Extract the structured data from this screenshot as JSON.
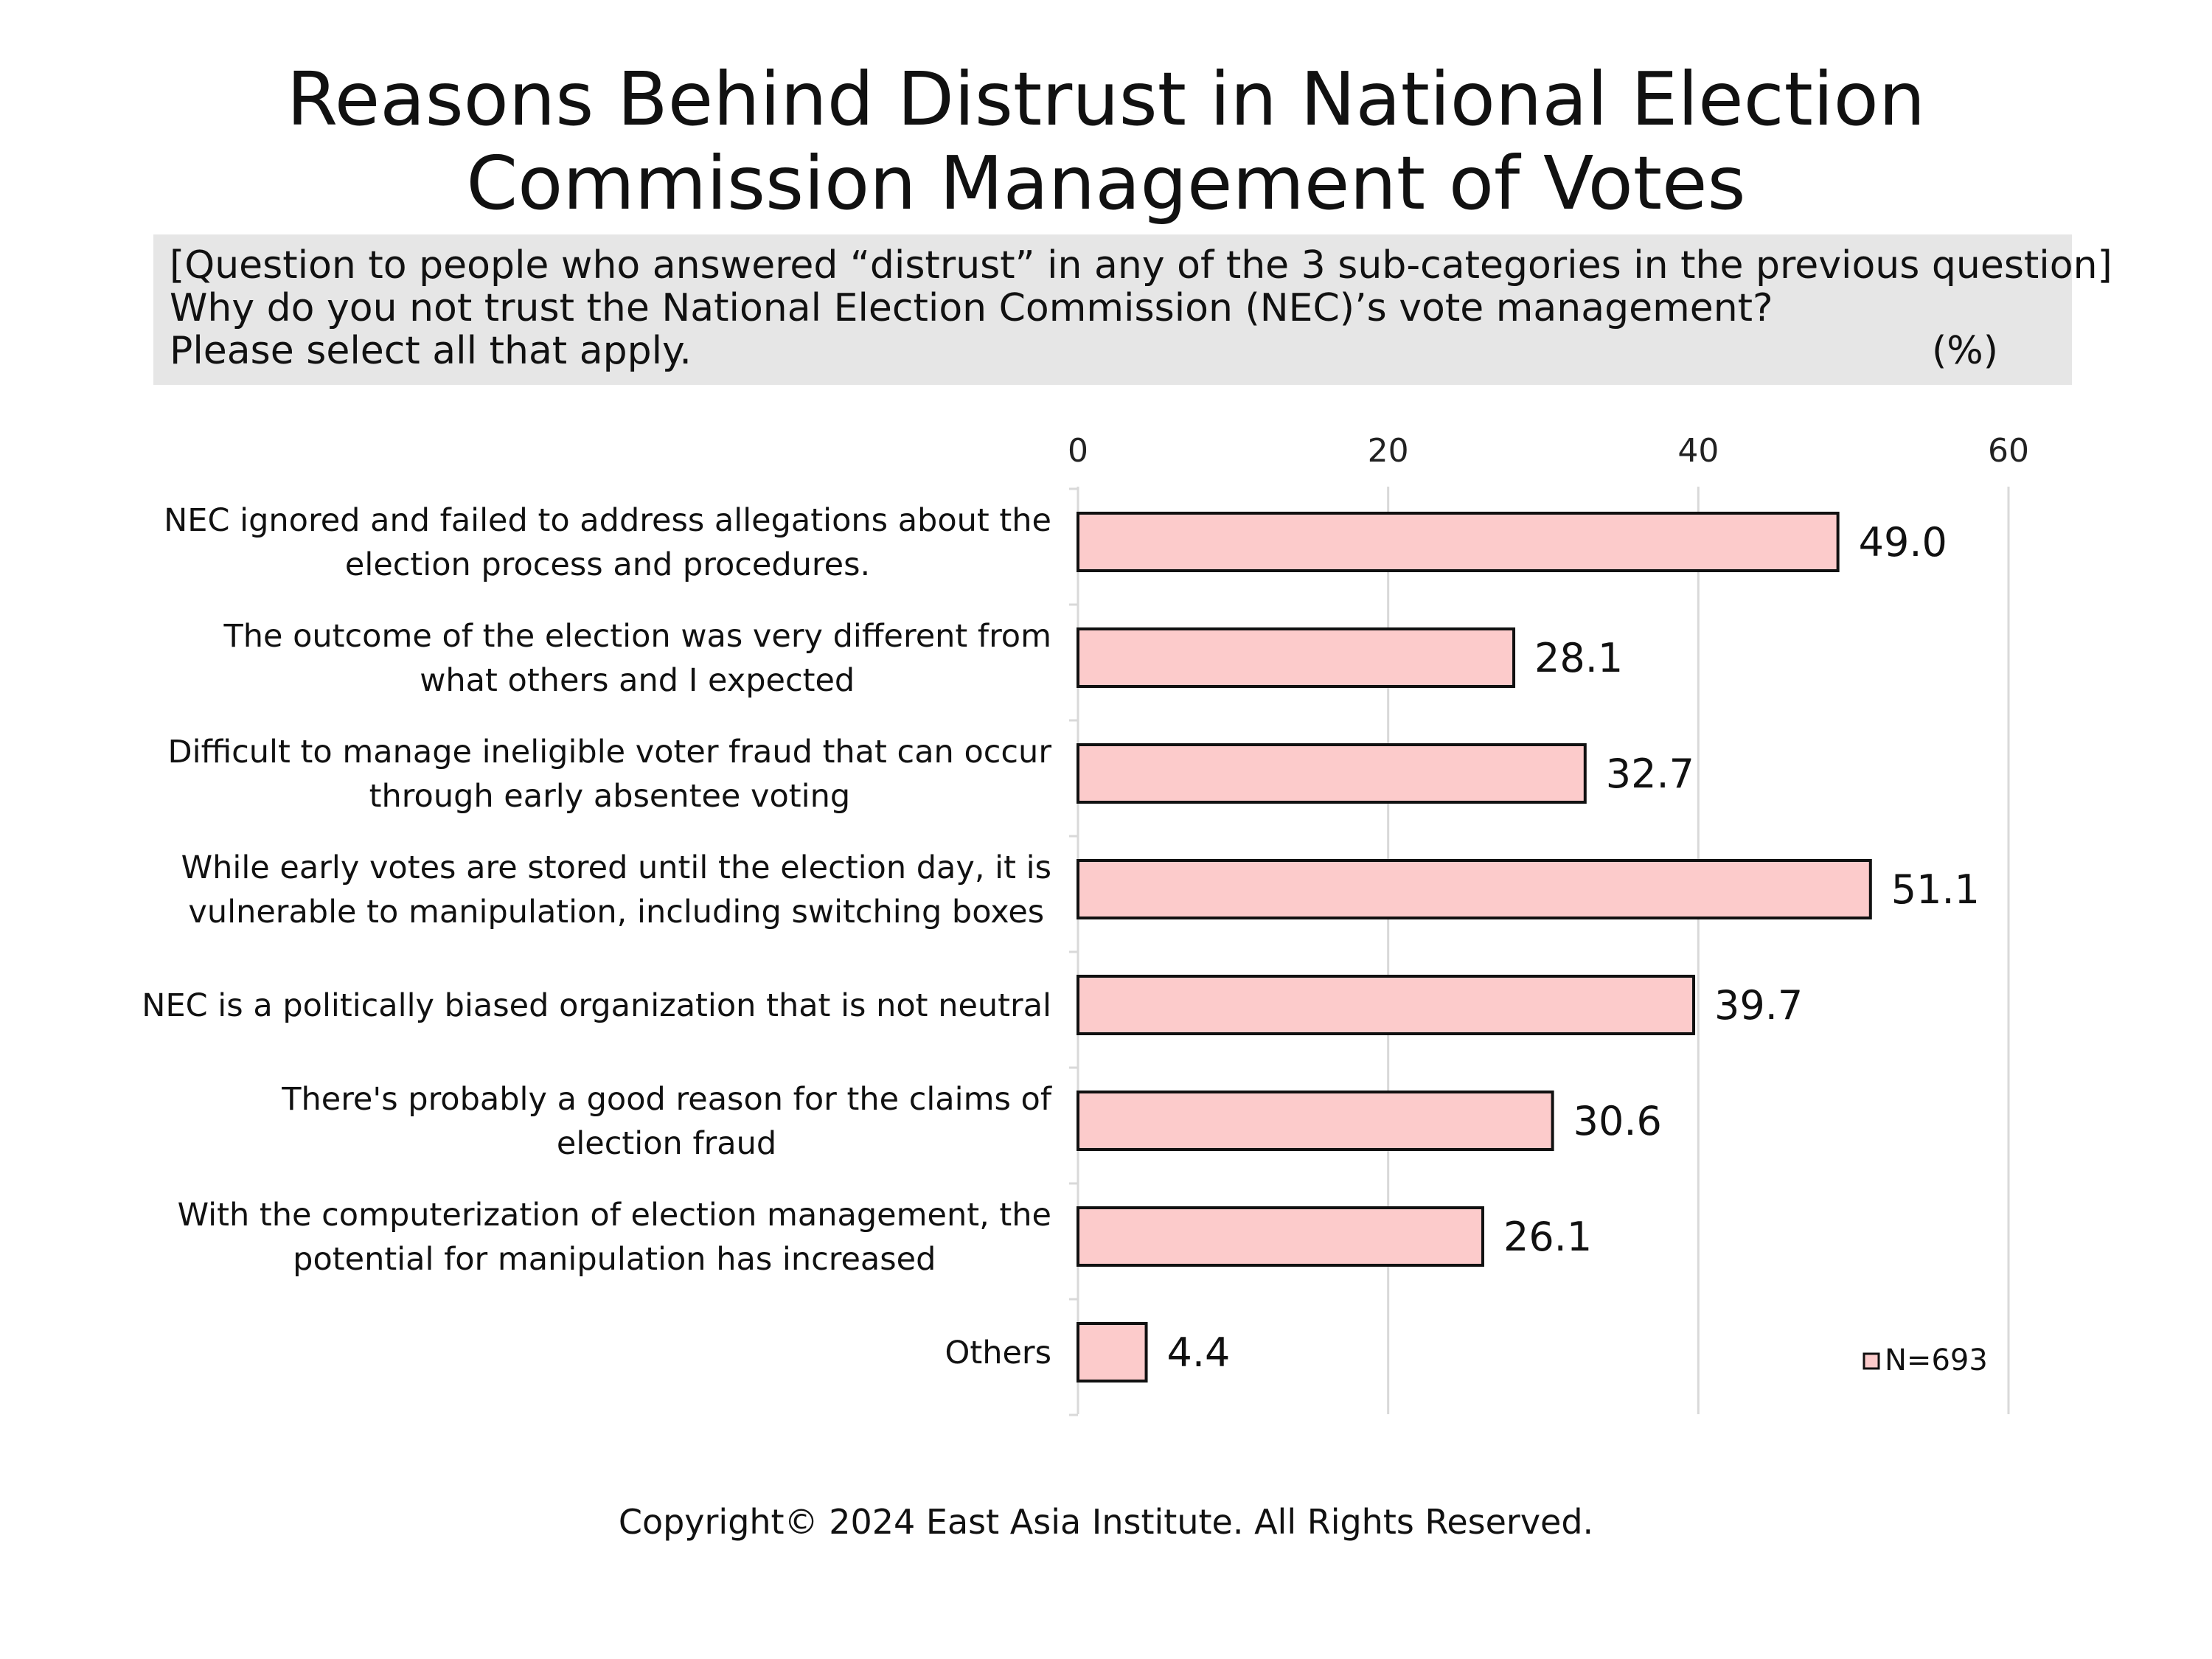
{
  "title_lines": [
    "Reasons Behind Distrust in National Election",
    "Commission Management of Votes"
  ],
  "question": {
    "line1": "[Question to people who answered “distrust” in any of the 3 sub-categories in the previous question]",
    "line2": "Why do you not trust the National Election Commission (NEC)’s vote management?",
    "line3": "Please select all that apply.",
    "unit": "(%)"
  },
  "footer": "Copyright© 2024 East Asia Institute. All Rights Reserved.",
  "colors": {
    "bar_fill": "#fccbcb",
    "bar_stroke": "#111111",
    "grid": "#d9d9d9",
    "question_bg": "#e6e6e6"
  },
  "chart_data": {
    "type": "bar",
    "orientation": "horizontal",
    "xlim": [
      0,
      60
    ],
    "x_ticks": [
      "0",
      "20",
      "40",
      "60"
    ],
    "x_axis_position": "top",
    "grid": true,
    "legend": {
      "label": "N=693",
      "placement": "bottom-right"
    },
    "categories": [
      [
        "NEC ignored and failed to address allegations about the",
        "election process and procedures."
      ],
      [
        "The outcome of the election was very different from",
        "what others and I expected"
      ],
      [
        "Difficult to manage ineligible voter fraud that can occur",
        "through early absentee voting"
      ],
      [
        "While early votes are stored until the election day, it is",
        "vulnerable to manipulation, including switching boxes"
      ],
      [
        "NEC is a politically biased organization that is not neutral"
      ],
      [
        "There's probably a good reason for the claims of",
        "election fraud"
      ],
      [
        "With the computerization of election management, the",
        "potential for manipulation has increased"
      ],
      [
        "Others"
      ]
    ],
    "values": [
      49.0,
      28.1,
      32.7,
      51.1,
      39.7,
      30.6,
      26.1,
      4.4
    ],
    "value_labels": [
      "49.0",
      "28.1",
      "32.7",
      "51.1",
      "39.7",
      "30.6",
      "26.1",
      "4.4"
    ]
  }
}
